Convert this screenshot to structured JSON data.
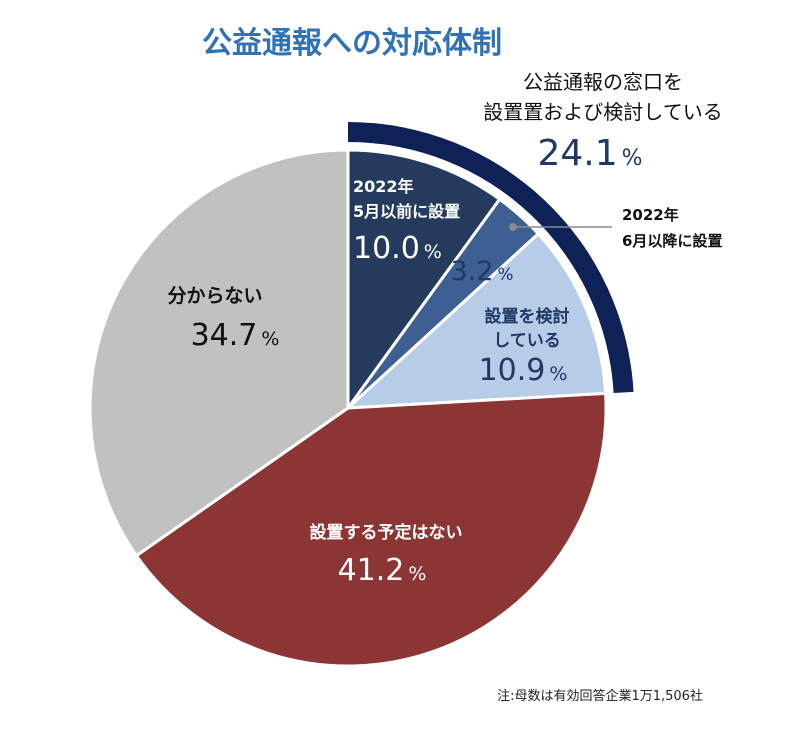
{
  "chart_data": {
    "type": "pie",
    "title": "公益通報への対応体制",
    "start_angle_deg": 0,
    "direction": "clockwise",
    "slices": [
      {
        "label_lines": [
          "2022年",
          "5月以前に設置"
        ],
        "value": 10.0,
        "value_text": "10.0",
        "color": "#243b5e"
      },
      {
        "label_lines": [
          "2022年",
          "6月以降に設置"
        ],
        "value": 3.2,
        "value_text": "3.2",
        "color": "#3d5f91"
      },
      {
        "label_lines": [
          "設置を検討",
          "している"
        ],
        "value": 10.9,
        "value_text": "10.9",
        "color": "#b7cce6"
      },
      {
        "label_lines": [
          "設置する予定はない"
        ],
        "value": 41.2,
        "value_text": "41.2",
        "color": "#8b3535"
      },
      {
        "label_lines": [
          "分からない"
        ],
        "value": 34.7,
        "value_text": "34.7",
        "color": "#c1c1c1"
      }
    ],
    "group_annotation": {
      "label_lines": [
        "公益通報の窓口を",
        "設置置および検討している"
      ],
      "value_text": "24.1",
      "color": "#0e2258",
      "covers_slices": [
        0,
        1,
        2
      ]
    },
    "percent_sign": "%",
    "footnote": "注:母数は有効回答企業1万1,506社"
  },
  "colors": {
    "title": "#3172b5",
    "callout_line": "#8a8a8a"
  }
}
